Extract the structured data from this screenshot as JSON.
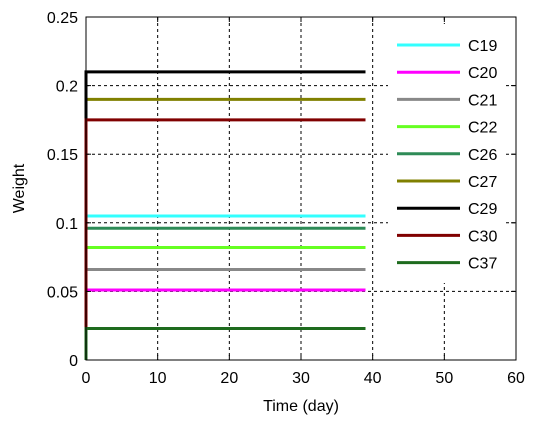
{
  "chart_data": {
    "type": "line",
    "xlabel": "Time (day)",
    "ylabel": "Weight",
    "xlim": [
      0,
      60
    ],
    "ylim": [
      0,
      0.25
    ],
    "x_ticks": [
      0,
      10,
      20,
      30,
      40,
      50,
      60
    ],
    "y_ticks": [
      0,
      0.05,
      0.1,
      0.15,
      0.2,
      0.25
    ],
    "x_tick_labels": [
      "0",
      "10",
      "20",
      "30",
      "40",
      "50",
      "60"
    ],
    "y_tick_labels": [
      "0",
      "0.05",
      "0.1",
      "0.15",
      "0.2",
      "0.25"
    ],
    "grid": true,
    "grid_style": "dashed",
    "legend_position": "top-right",
    "series": [
      {
        "name": "C19",
        "color": "#33ffff",
        "x": [
          0,
          39
        ],
        "y": [
          0.105,
          0.105
        ]
      },
      {
        "name": "C20",
        "color": "#ff00ff",
        "x": [
          0,
          39
        ],
        "y": [
          0.051,
          0.051
        ]
      },
      {
        "name": "C21",
        "color": "#888888",
        "x": [
          0,
          39
        ],
        "y": [
          0.066,
          0.066
        ]
      },
      {
        "name": "C22",
        "color": "#66ff22",
        "x": [
          0,
          39
        ],
        "y": [
          0.082,
          0.082
        ]
      },
      {
        "name": "C26",
        "color": "#2e8b57",
        "x": [
          0,
          39
        ],
        "y": [
          0.096,
          0.096
        ]
      },
      {
        "name": "C27",
        "color": "#808000",
        "x": [
          0,
          39
        ],
        "y": [
          0.19,
          0.19
        ]
      },
      {
        "name": "C29",
        "color": "#000000",
        "x": [
          0,
          39
        ],
        "y": [
          0.21,
          0.21
        ]
      },
      {
        "name": "C30",
        "color": "#800000",
        "x": [
          0,
          39
        ],
        "y": [
          0.175,
          0.175
        ]
      },
      {
        "name": "C37",
        "color": "#1e6b1e",
        "x": [
          0,
          39
        ],
        "y": [
          0.023,
          0.023
        ]
      }
    ]
  }
}
